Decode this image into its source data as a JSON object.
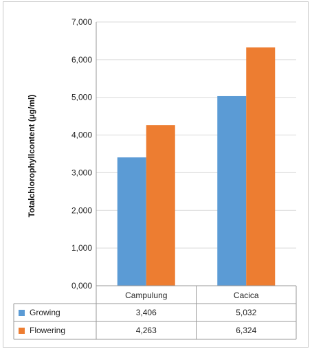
{
  "chart_data": {
    "type": "bar",
    "title": "",
    "xlabel": "",
    "ylabel": "Totalchlorophyllcontent (µg/ml)",
    "categories": [
      "Campulung",
      "Cacica"
    ],
    "series": [
      {
        "name": "Growing",
        "values": [
          3.406,
          5.032
        ],
        "labels": [
          "3,406",
          "5,032"
        ],
        "color": "#5b9bd5"
      },
      {
        "name": "Flowering",
        "values": [
          4.263,
          6.324
        ],
        "labels": [
          "4,263",
          "6,324"
        ],
        "color": "#ed7d31"
      }
    ],
    "ylim": [
      0,
      7
    ],
    "yticks": [
      0,
      1,
      2,
      3,
      4,
      5,
      6,
      7
    ],
    "ytick_labels": [
      "0,000",
      "1,000",
      "2,000",
      "3,000",
      "4,000",
      "5,000",
      "6,000",
      "7,000"
    ],
    "grid": true,
    "legend": "data-table"
  }
}
